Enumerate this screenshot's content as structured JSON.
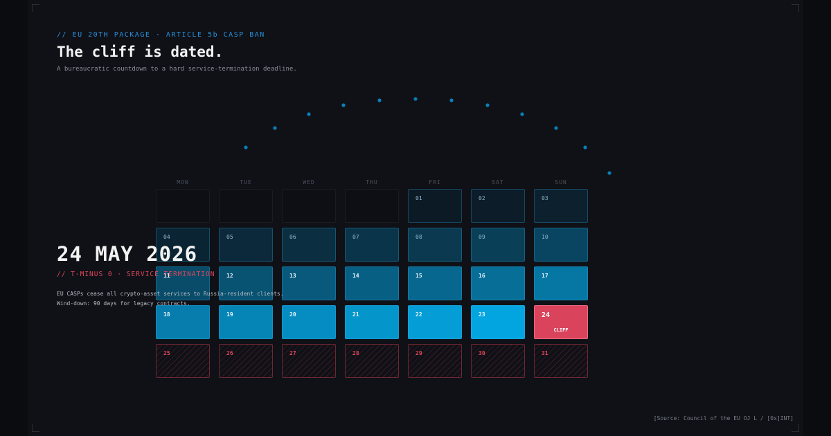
{
  "header": {
    "kicker": "// EU 20TH PACKAGE · ARTICLE 5b CASP BAN",
    "title": "The cliff is dated.",
    "subtitle": "A bureaucratic countdown to a hard service-termination deadline."
  },
  "calendar": {
    "weekdays": [
      "MON",
      "TUE",
      "WED",
      "THU",
      "FRI",
      "SAT",
      "SUN"
    ],
    "days": [
      "01",
      "02",
      "03",
      "04",
      "05",
      "06",
      "07",
      "08",
      "09",
      "10",
      "11",
      "12",
      "13",
      "14",
      "15",
      "16",
      "17",
      "18",
      "19",
      "20",
      "21",
      "22",
      "23",
      "24",
      "25",
      "26",
      "27",
      "28",
      "29",
      "30",
      "31"
    ],
    "cliff_tag": "CLIFF"
  },
  "deadline": {
    "date": "24 MAY 2026",
    "status": "// T-MINUS 0 · SERVICE TERMINATION",
    "lines": [
      "EU CASPs cease all crypto-asset services to Russia-resident clients.",
      "Wind-down: 90 days for legacy contracts."
    ]
  },
  "source": "[Source: Council of the EU OJ L / [0x]INT]"
}
